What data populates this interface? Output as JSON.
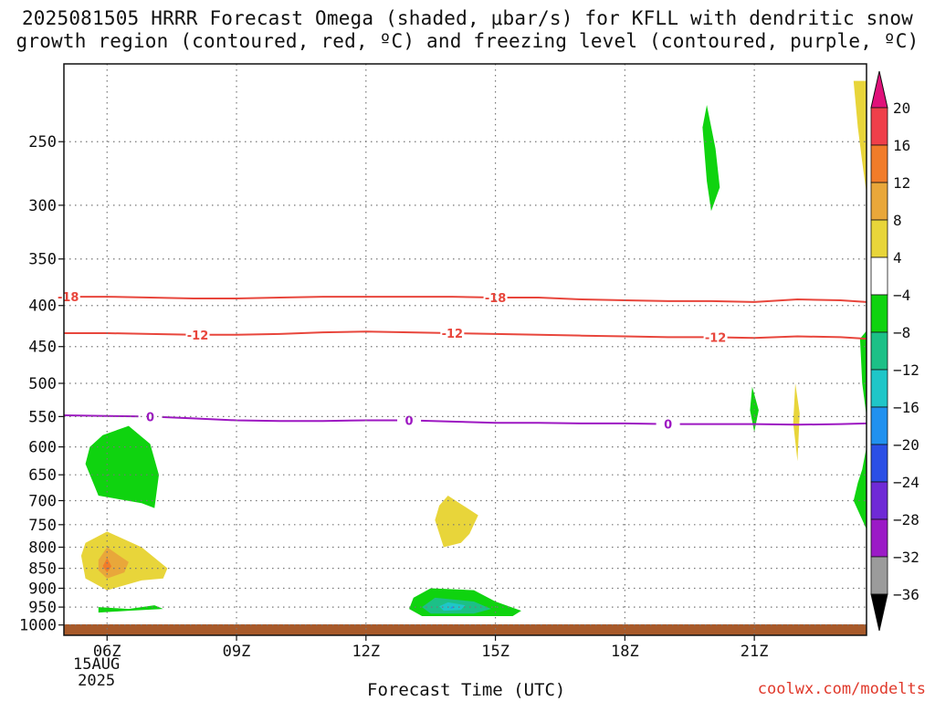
{
  "title": {
    "line1": "2025081505 HRRR Forecast Omega (shaded, μbar/s) for KFLL with dendritic snow",
    "line2": "growth region (contoured, red, ºC) and freezing level (contoured, purple, ºC)"
  },
  "xlabel": "Forecast Time (UTC)",
  "credit": "coolwx.com/modelts",
  "date_label": {
    "day": "15AUG",
    "year": "2025"
  },
  "chart_data": {
    "type": "heatmap",
    "x_axis": {
      "unit": "UTC hour",
      "range": [
        5,
        23.6
      ],
      "ticks": [
        6,
        9,
        12,
        15,
        18,
        21
      ],
      "tick_labels": [
        "06Z",
        "09Z",
        "12Z",
        "15Z",
        "18Z",
        "21Z"
      ]
    },
    "y_axis": {
      "unit": "hPa",
      "scale": "log-pressure, inverted",
      "ticks": [
        250,
        300,
        350,
        400,
        450,
        500,
        550,
        600,
        650,
        700,
        750,
        800,
        850,
        900,
        950,
        1000
      ],
      "grid": true
    },
    "colorbar": {
      "unit": "μbar/s",
      "labels": [
        "20",
        "16",
        "12",
        "8",
        "4",
        "−4",
        "−8",
        "−12",
        "−16",
        "−20",
        "−24",
        "−28",
        "−32",
        "−36"
      ],
      "colors": [
        "#ef3f4a",
        "#f17c2a",
        "#e9a73a",
        "#e8d53a",
        "#ffffff",
        "#0fd30f",
        "#1cc087",
        "#1fc6c8",
        "#2191ef",
        "#2b4fe5",
        "#6f2ad6",
        "#9b1ac6",
        "#9b9b9b"
      ],
      "top_arrow_color": "#e0117a",
      "bottom_arrow_color": "#000000"
    },
    "contours": [
      {
        "label": "-18",
        "color": "#e8463c",
        "points": [
          [
            5,
            390
          ],
          [
            6,
            390
          ],
          [
            7,
            391
          ],
          [
            8,
            392
          ],
          [
            9,
            392
          ],
          [
            10,
            391
          ],
          [
            11,
            390
          ],
          [
            12,
            390
          ],
          [
            13,
            390
          ],
          [
            14,
            390
          ],
          [
            15,
            391
          ],
          [
            16,
            391
          ],
          [
            17,
            393
          ],
          [
            18,
            394
          ],
          [
            19,
            395
          ],
          [
            20,
            395
          ],
          [
            21,
            396
          ],
          [
            22,
            393
          ],
          [
            23,
            394
          ],
          [
            23.6,
            396
          ]
        ],
        "label_x": [
          5.1,
          15.0
        ]
      },
      {
        "label": "-12",
        "color": "#e8463c",
        "points": [
          [
            5,
            433
          ],
          [
            6,
            433
          ],
          [
            7,
            434
          ],
          [
            8,
            435
          ],
          [
            9,
            435
          ],
          [
            10,
            434
          ],
          [
            11,
            432
          ],
          [
            12,
            431
          ],
          [
            13,
            432
          ],
          [
            14,
            433
          ],
          [
            15,
            434
          ],
          [
            16,
            435
          ],
          [
            17,
            436
          ],
          [
            18,
            437
          ],
          [
            19,
            438
          ],
          [
            20,
            438
          ],
          [
            21,
            439
          ],
          [
            22,
            437
          ],
          [
            23,
            438
          ],
          [
            23.6,
            440
          ]
        ],
        "label_x": [
          8.1,
          14.0,
          20.1
        ]
      },
      {
        "label": "0",
        "color": "#9d17c2",
        "points": [
          [
            5,
            548
          ],
          [
            6,
            549
          ],
          [
            7,
            550
          ],
          [
            8,
            553
          ],
          [
            9,
            556
          ],
          [
            10,
            557
          ],
          [
            11,
            557
          ],
          [
            12,
            556
          ],
          [
            13,
            556
          ],
          [
            14,
            558
          ],
          [
            15,
            560
          ],
          [
            16,
            560
          ],
          [
            17,
            561
          ],
          [
            18,
            561
          ],
          [
            19,
            562
          ],
          [
            20,
            562
          ],
          [
            21,
            562
          ],
          [
            22,
            563
          ],
          [
            23,
            562
          ],
          [
            23.6,
            561
          ]
        ],
        "label_x": [
          7.0,
          13.0,
          19.0
        ]
      }
    ],
    "shaded_regions": [
      {
        "value": "-4 to -8",
        "color": "#0fd30f",
        "points": [
          [
            5.9,
            580
          ],
          [
            6.5,
            565
          ],
          [
            7.0,
            595
          ],
          [
            7.2,
            650
          ],
          [
            7.1,
            715
          ],
          [
            6.8,
            705
          ],
          [
            5.8,
            690
          ],
          [
            5.5,
            630
          ],
          [
            5.6,
            600
          ]
        ]
      },
      {
        "value": "4 to 8",
        "color": "#e8d53a",
        "points": [
          [
            6.0,
            765
          ],
          [
            6.8,
            800
          ],
          [
            7.4,
            850
          ],
          [
            7.3,
            875
          ],
          [
            6.8,
            880
          ],
          [
            6.0,
            905
          ],
          [
            5.5,
            875
          ],
          [
            5.4,
            820
          ],
          [
            5.5,
            790
          ]
        ]
      },
      {
        "value": "8 to 12",
        "color": "#e9a73a",
        "points": [
          [
            6.0,
            800
          ],
          [
            6.5,
            835
          ],
          [
            6.4,
            860
          ],
          [
            6.0,
            875
          ],
          [
            5.8,
            855
          ],
          [
            5.8,
            830
          ]
        ]
      },
      {
        "value": "12 to 16",
        "color": "#f17c2a",
        "points": [
          [
            6.0,
            825
          ],
          [
            6.1,
            845
          ],
          [
            6.0,
            860
          ],
          [
            5.9,
            845
          ]
        ]
      },
      {
        "value": "-4 to -8",
        "color": "#0fd30f",
        "points": [
          [
            5.8,
            950
          ],
          [
            6.5,
            955
          ],
          [
            7.1,
            945
          ],
          [
            7.3,
            955
          ],
          [
            6.5,
            960
          ],
          [
            5.8,
            965
          ],
          [
            5.8,
            958
          ]
        ]
      },
      {
        "value": "4 to 8",
        "color": "#e8d53a",
        "points": [
          [
            13.9,
            690
          ],
          [
            14.6,
            730
          ],
          [
            14.4,
            770
          ],
          [
            14.2,
            790
          ],
          [
            13.8,
            800
          ],
          [
            13.6,
            740
          ],
          [
            13.7,
            710
          ]
        ]
      },
      {
        "value": "-4 to -8",
        "color": "#0fd30f",
        "points": [
          [
            13.5,
            900
          ],
          [
            14.5,
            905
          ],
          [
            15.0,
            935
          ],
          [
            15.6,
            960
          ],
          [
            15.4,
            975
          ],
          [
            14.5,
            975
          ],
          [
            13.3,
            975
          ],
          [
            13.0,
            955
          ],
          [
            13.1,
            925
          ]
        ]
      },
      {
        "value": "-8 to -12",
        "color": "#1cc087",
        "points": [
          [
            13.6,
            925
          ],
          [
            14.5,
            935
          ],
          [
            14.9,
            955
          ],
          [
            14.5,
            968
          ],
          [
            13.5,
            968
          ],
          [
            13.3,
            950
          ]
        ]
      },
      {
        "value": "-12 to -16",
        "color": "#1fc6c8",
        "points": [
          [
            13.9,
            937
          ],
          [
            14.3,
            945
          ],
          [
            14.2,
            958
          ],
          [
            13.8,
            960
          ],
          [
            13.7,
            948
          ]
        ]
      },
      {
        "value": "-16 to -20",
        "color": "#2191ef",
        "points": [
          [
            14.0,
            948
          ],
          [
            14.05,
            952
          ],
          [
            13.95,
            954
          ]
        ]
      },
      {
        "value": "-4 to -8",
        "color": "#0fd30f",
        "points": [
          [
            19.9,
            225
          ],
          [
            20.1,
            255
          ],
          [
            20.2,
            285
          ],
          [
            20.0,
            305
          ],
          [
            19.9,
            280
          ],
          [
            19.8,
            240
          ]
        ]
      },
      {
        "value": "-4 to -8",
        "color": "#0fd30f",
        "points": [
          [
            20.95,
            505
          ],
          [
            21.1,
            540
          ],
          [
            21.0,
            575
          ],
          [
            20.9,
            540
          ]
        ]
      },
      {
        "value": "4 to 8",
        "color": "#e8d53a",
        "points": [
          [
            21.95,
            500
          ],
          [
            22.05,
            545
          ],
          [
            22.0,
            625
          ],
          [
            21.9,
            560
          ]
        ]
      },
      {
        "value": "4 to 8",
        "color": "#e8d53a",
        "points": [
          [
            23.3,
            210
          ],
          [
            23.6,
            210
          ],
          [
            23.6,
            290
          ],
          [
            23.5,
            265
          ],
          [
            23.4,
            240
          ]
        ]
      },
      {
        "value": "-4 to -8",
        "color": "#0fd30f",
        "points": [
          [
            23.45,
            440
          ],
          [
            23.6,
            430
          ],
          [
            23.6,
            550
          ],
          [
            23.5,
            500
          ]
        ]
      },
      {
        "value": "-4 to -8",
        "color": "#0fd30f",
        "points": [
          [
            23.5,
            640
          ],
          [
            23.6,
            600
          ],
          [
            23.6,
            760
          ],
          [
            23.3,
            700
          ],
          [
            23.4,
            665
          ]
        ]
      }
    ],
    "terrain": {
      "color": "#a85a2a",
      "label": "surface"
    }
  }
}
